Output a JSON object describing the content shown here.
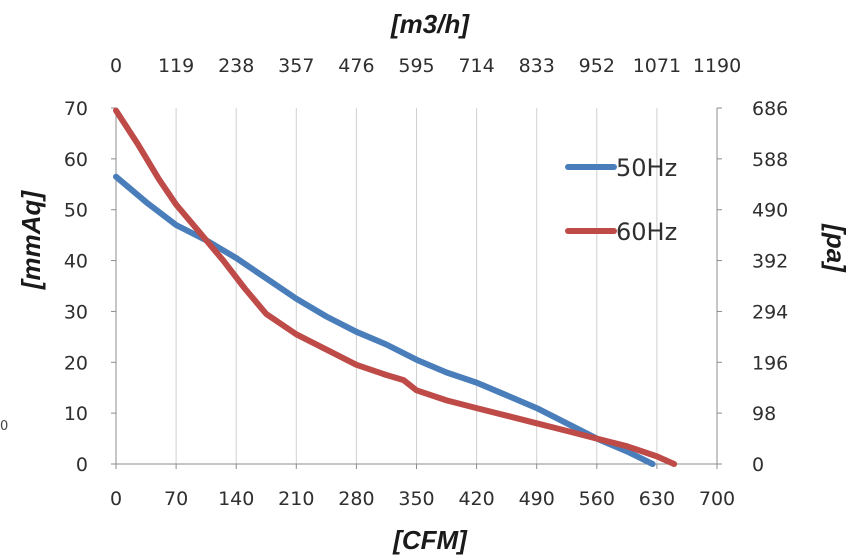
{
  "chart_data": {
    "type": "line",
    "title": "",
    "x_bottom": {
      "label": "[CFM]",
      "ticks": [
        "0",
        "70",
        "140",
        "210",
        "280",
        "350",
        "420",
        "490",
        "560",
        "630",
        "700"
      ],
      "range": [
        0,
        700
      ]
    },
    "x_top": {
      "label": "[m3/h]",
      "ticks": [
        "0",
        "119",
        "238",
        "357",
        "476",
        "595",
        "714",
        "833",
        "952",
        "1071",
        "1190"
      ]
    },
    "y_left": {
      "label": "[mmAq]",
      "ticks": [
        "0",
        "10",
        "20",
        "30",
        "40",
        "50",
        "60",
        "70"
      ],
      "range": [
        0,
        70
      ]
    },
    "y_right": {
      "label": "[pa]",
      "ticks": [
        "0",
        "98",
        "196",
        "294",
        "392",
        "490",
        "588",
        "686"
      ]
    },
    "grid": {
      "vertical": true,
      "horizontal": false
    },
    "legend_position": "top-right",
    "series": [
      {
        "name": "50Hz",
        "color": "#4a7ebb",
        "x": [
          0,
          35,
          70,
          105,
          140,
          175,
          210,
          245,
          280,
          315,
          350,
          385,
          420,
          455,
          490,
          525,
          560,
          595,
          625
        ],
        "y": [
          56.5,
          51.5,
          47,
          44,
          40.5,
          36.5,
          32.5,
          29,
          26,
          23.5,
          20.5,
          18,
          16,
          13.5,
          11,
          8,
          5,
          2.5,
          0
        ]
      },
      {
        "name": "60Hz",
        "color": "#be4b48",
        "x": [
          0,
          25,
          50,
          70,
          100,
          125,
          150,
          175,
          210,
          245,
          280,
          315,
          335,
          350,
          385,
          420,
          455,
          490,
          525,
          560,
          595,
          630,
          650
        ],
        "y": [
          69.5,
          63,
          56,
          51,
          45,
          40,
          34.5,
          29.5,
          25.5,
          22.5,
          19.5,
          17.5,
          16.5,
          14.5,
          12.5,
          11,
          9.5,
          8,
          6.5,
          5,
          3.5,
          1.5,
          0
        ]
      }
    ],
    "stray_label": "0"
  }
}
